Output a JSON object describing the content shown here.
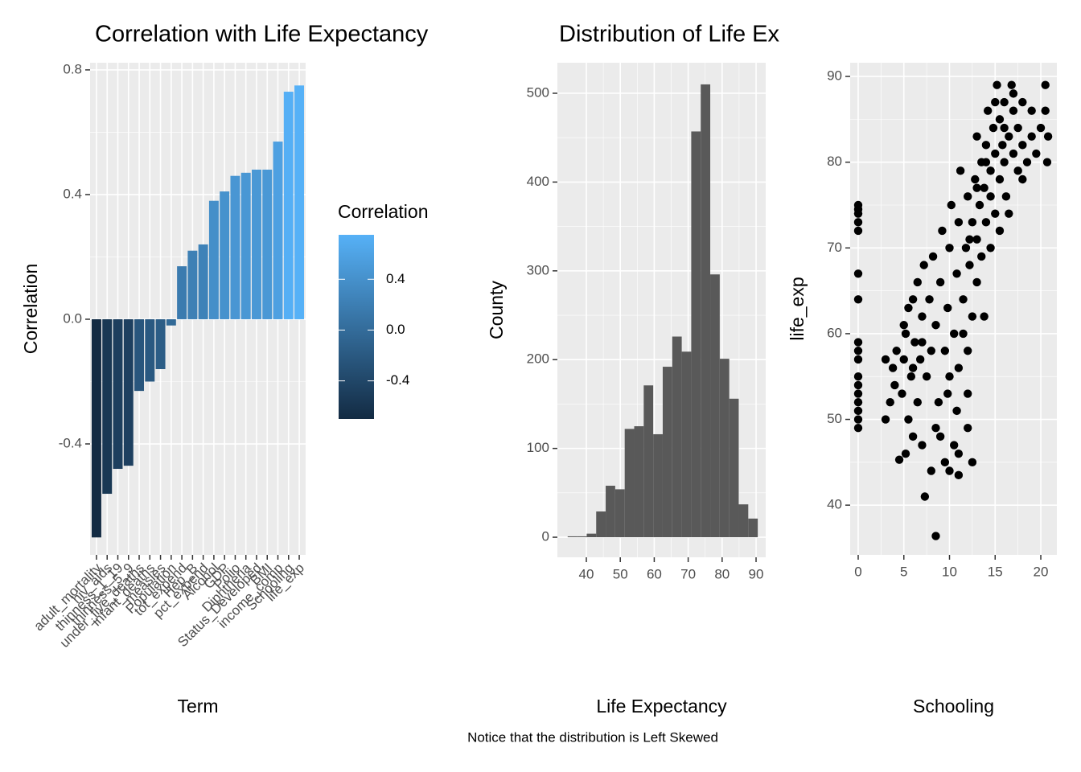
{
  "chart_data": [
    {
      "type": "bar",
      "title": "Correlation with Life Expectancy",
      "x_label": "Term",
      "y_label": "Correlation",
      "categories": [
        "adult_mortality",
        "hiv_aids",
        "thinness_1_19",
        "thinness_5_9",
        "under_five_deaths",
        "infant_deaths",
        "measles",
        "Population",
        "tot_expend",
        "Hep_B",
        "pct_expend",
        "Alcohol",
        "GDP",
        "Polio",
        "Diphtheria",
        "Status_Developed",
        "BMI",
        "income_comp",
        "Schooling",
        "life_exp"
      ],
      "values": [
        -0.7,
        -0.56,
        -0.48,
        -0.47,
        -0.23,
        -0.2,
        -0.16,
        -0.02,
        0.17,
        0.22,
        0.24,
        0.38,
        0.41,
        0.46,
        0.47,
        0.48,
        0.48,
        0.57,
        0.73,
        0.75
      ],
      "ylim": [
        -0.756,
        0.823
      ],
      "yticks": [
        -0.4,
        {
          "value": 0,
          "label": "0.0"
        },
        0.4,
        0.8
      ],
      "grid": true,
      "legend": {
        "title": "Correlation",
        "color_low": "#132B43",
        "color_high": "#56B1F7",
        "limits": [
          -0.7,
          0.75
        ],
        "ticks": [
          -0.4,
          {
            "value": 0,
            "label": "0.0"
          },
          0.4
        ]
      }
    },
    {
      "type": "histogram",
      "title": "Distribution of Life Expectancy",
      "x_label": "Life Expectancy",
      "y_label": "County",
      "color": "#595959",
      "bins": [
        34.5,
        37.3,
        40.1,
        42.9,
        45.7,
        48.5,
        51.3,
        54.1,
        56.9,
        59.7,
        62.5,
        65.3,
        68.1,
        70.9,
        73.7,
        76.5,
        79.3,
        82.1,
        84.9,
        87.7,
        90.5
      ],
      "values": [
        1,
        1,
        4,
        29,
        58,
        54,
        122,
        125,
        171,
        116,
        192,
        226,
        209,
        457,
        510,
        296,
        201,
        156,
        37,
        21
      ],
      "xlim": [
        31.47,
        92.84
      ],
      "xticks": [
        40,
        50,
        60,
        70,
        80,
        90
      ],
      "ylim": [
        -22.6,
        534.4
      ],
      "yticks": [
        0,
        100,
        200,
        300,
        400,
        500
      ],
      "grid": true
    },
    {
      "type": "scatter",
      "x_label": "Schooling",
      "y_label": "life_exp",
      "color": "#000000",
      "x": [
        0,
        0,
        0,
        0,
        0,
        0,
        0,
        0,
        0,
        0,
        0,
        0,
        0,
        0,
        0,
        0,
        0,
        3,
        3,
        3.5,
        3.8,
        4,
        4.2,
        4.5,
        4.8,
        5,
        5,
        5.2,
        5.5,
        5.5,
        5.8,
        6,
        6,
        6.2,
        6.5,
        6.5,
        6.8,
        7,
        7,
        7.2,
        7.3,
        7.5,
        7.8,
        8,
        8,
        8.2,
        8.5,
        8.5,
        8.8,
        9,
        9,
        9.2,
        9.5,
        9.5,
        9.8,
        10,
        10,
        10,
        10.2,
        10.5,
        10.5,
        10.8,
        11,
        11,
        11,
        11.2,
        11.5,
        11.8,
        12,
        12,
        12,
        12.2,
        12.5,
        12.5,
        12.8,
        13,
        13,
        13,
        13.3,
        13.5,
        13.5,
        13.8,
        14,
        14,
        14.2,
        14.5,
        14.5,
        14.8,
        15,
        15,
        15.2,
        15.5,
        15.5,
        15.8,
        16,
        16,
        16.2,
        16.5,
        16.8,
        17,
        17,
        17.5,
        17.5,
        18,
        18,
        18.5,
        19,
        19,
        19.5,
        20,
        20.5,
        20.5,
        20.7,
        20.8,
        11.5,
        12,
        10.8,
        9.8,
        13.8,
        14.5,
        15.5,
        16.5,
        8.5,
        7,
        6,
        5.2,
        12.5,
        11,
        12.2,
        13,
        14,
        15,
        16,
        17,
        18
      ],
      "values": [
        49,
        50,
        51,
        52,
        53,
        54,
        55,
        57,
        58,
        59,
        64,
        67,
        72,
        73,
        74,
        74.5,
        75,
        50,
        57,
        52,
        56,
        54,
        58,
        45.3,
        53,
        57,
        61,
        46,
        63,
        50,
        55,
        64,
        48,
        59,
        66,
        52,
        57,
        62,
        47,
        68,
        41,
        55,
        64,
        58,
        44,
        69,
        36.4,
        61,
        52,
        66,
        48,
        72,
        58,
        45,
        63,
        70,
        55,
        44,
        75,
        60,
        47,
        67,
        73,
        56,
        43.5,
        79,
        64,
        70,
        76,
        58,
        49,
        68,
        73,
        62,
        78,
        71,
        83,
        66,
        75,
        80,
        69,
        77,
        82,
        73,
        86,
        76,
        79,
        84,
        81,
        74,
        89,
        78,
        85,
        82,
        87,
        80,
        76,
        83,
        89,
        81,
        86,
        79,
        84,
        82,
        87,
        80,
        83,
        86,
        81,
        84,
        89,
        86,
        80,
        83,
        60,
        53,
        51,
        53,
        62,
        70,
        72,
        74,
        49,
        59,
        56,
        60,
        45,
        46,
        71,
        77,
        80,
        87,
        84,
        88,
        78
      ],
      "xlim": [
        -0.88,
        21.76
      ],
      "xticks": [
        0,
        5,
        10,
        15,
        20
      ],
      "ylim": [
        34.2,
        91.6
      ],
      "yticks": [
        40,
        50,
        60,
        70,
        80,
        90
      ],
      "grid": true
    }
  ],
  "caption": "Notice that the distribution is Left Skewed"
}
